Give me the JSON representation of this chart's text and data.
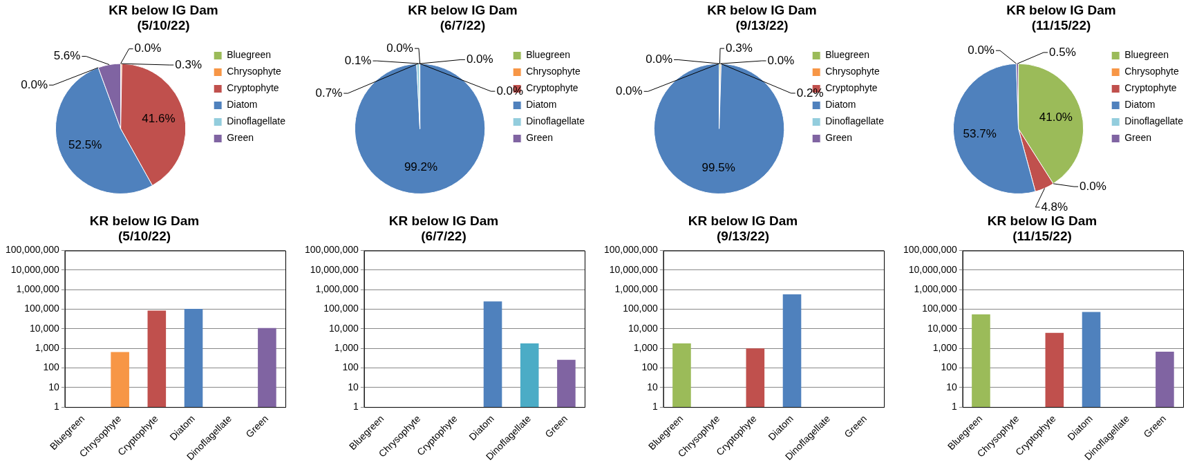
{
  "chart_data": [
    {
      "type": "pie",
      "title": "KR below IG Dam",
      "subtitle": "(5/10/22)",
      "categories": [
        "Bluegreen",
        "Chrysophyte",
        "Cryptophyte",
        "Diatom",
        "Dinoflagellate",
        "Green"
      ],
      "values": [
        0.0,
        0.3,
        41.6,
        52.5,
        0.0,
        5.6
      ],
      "value_labels": [
        "0.0%",
        "0.3%",
        "41.6%",
        "52.5%",
        "0.0%",
        "5.6%"
      ],
      "colors": [
        "#9bbb59",
        "#f79646",
        "#c0504d",
        "#4f81bd",
        "#93cddd",
        "#8064a2"
      ],
      "legend": "right"
    },
    {
      "type": "pie",
      "title": "KR below IG Dam",
      "subtitle": "(6/7/22)",
      "categories": [
        "Bluegreen",
        "Chrysophyte",
        "Cryptophyte",
        "Diatom",
        "Dinoflagellate",
        "Green"
      ],
      "values": [
        0.0,
        0.0,
        0.0,
        99.2,
        0.7,
        0.1
      ],
      "value_labels": [
        "0.0%",
        "0.0%",
        "0.0%",
        "99.2%",
        "0.7%",
        "0.1%"
      ],
      "colors": [
        "#9bbb59",
        "#f79646",
        "#c0504d",
        "#4f81bd",
        "#93cddd",
        "#8064a2"
      ],
      "legend": "right"
    },
    {
      "type": "pie",
      "title": "KR below IG Dam",
      "subtitle": "(9/13/22)",
      "categories": [
        "Bluegreen",
        "Chrysophyte",
        "Cryptophyte",
        "Diatom",
        "Dinoflagellate",
        "Green"
      ],
      "values": [
        0.3,
        0.0,
        0.2,
        99.5,
        0.0,
        0.0
      ],
      "value_labels": [
        "0.3%",
        "0.0%",
        "0.2%",
        "99.5%",
        "0.0%",
        "0.0%"
      ],
      "colors": [
        "#9bbb59",
        "#f79646",
        "#c0504d",
        "#4f81bd",
        "#93cddd",
        "#8064a2"
      ],
      "legend": "right"
    },
    {
      "type": "pie",
      "title": "KR below IG Dam",
      "subtitle": "(11/15/22)",
      "categories": [
        "Bluegreen",
        "Chrysophyte",
        "Cryptophyte",
        "Diatom",
        "Dinoflagellate",
        "Green"
      ],
      "values": [
        41.0,
        0.0,
        4.8,
        53.7,
        0.0,
        0.5
      ],
      "value_labels": [
        "41.0%",
        "0.0%",
        "4.8%",
        "53.7%",
        "0.0%",
        "0.5%"
      ],
      "colors": [
        "#9bbb59",
        "#f79646",
        "#c0504d",
        "#4f81bd",
        "#93cddd",
        "#8064a2"
      ],
      "legend": "right"
    },
    {
      "type": "bar",
      "title": "KR below IG Dam",
      "subtitle": "(5/10/22)",
      "categories": [
        "Bluegreen",
        "Chrysophyte",
        "Cryptophyte",
        "Diatom",
        "Dinoflagellate",
        "Green"
      ],
      "values": [
        null,
        650,
        85000,
        105000,
        null,
        11000
      ],
      "colors": [
        "#9bbb59",
        "#f79646",
        "#c0504d",
        "#4f81bd",
        "#4bacc6",
        "#8064a2"
      ],
      "log": true,
      "ylim": [
        1,
        100000000
      ],
      "yticks": [
        1,
        10,
        100,
        {
          "value": 1000,
          "label": "1,000"
        },
        {
          "value": 10000,
          "label": "10,000"
        },
        {
          "value": 100000,
          "label": "100,000"
        },
        {
          "value": 1000000,
          "label": "1,000,000"
        },
        {
          "value": 10000000,
          "label": "10,000,000"
        },
        {
          "value": 100000000,
          "label": "100,000,000"
        }
      ],
      "grid": "y"
    },
    {
      "type": "bar",
      "title": "KR below IG Dam",
      "subtitle": "(6/7/22)",
      "categories": [
        "Bluegreen",
        "Chrysophyte",
        "Cryptophyte",
        "Diatom",
        "Dinoflagellate",
        "Green"
      ],
      "values": [
        null,
        null,
        null,
        250000,
        1800,
        260
      ],
      "colors": [
        "#9bbb59",
        "#f79646",
        "#c0504d",
        "#4f81bd",
        "#4bacc6",
        "#8064a2"
      ],
      "log": true,
      "ylim": [
        1,
        100000000
      ],
      "yticks": [
        1,
        10,
        100,
        {
          "value": 1000,
          "label": "1,000"
        },
        {
          "value": 10000,
          "label": "10,000"
        },
        {
          "value": 100000,
          "label": "100,000"
        },
        {
          "value": 1000000,
          "label": "1,000,000"
        },
        {
          "value": 10000000,
          "label": "10,000,000"
        },
        {
          "value": 100000000,
          "label": "100,000,000"
        }
      ],
      "grid": "y"
    },
    {
      "type": "bar",
      "title": "KR below IG Dam",
      "subtitle": "(9/13/22)",
      "categories": [
        "Bluegreen",
        "Chrysophyte",
        "Cryptophyte",
        "Diatom",
        "Dinoflagellate",
        "Green"
      ],
      "values": [
        1800,
        null,
        1000,
        580000,
        null,
        null
      ],
      "colors": [
        "#9bbb59",
        "#f79646",
        "#c0504d",
        "#4f81bd",
        "#4bacc6",
        "#8064a2"
      ],
      "log": true,
      "ylim": [
        1,
        100000000
      ],
      "yticks": [
        1,
        10,
        100,
        {
          "value": 1000,
          "label": "1,000"
        },
        {
          "value": 10000,
          "label": "10,000"
        },
        {
          "value": 100000,
          "label": "100,000"
        },
        {
          "value": 1000000,
          "label": "1,000,000"
        },
        {
          "value": 10000000,
          "label": "10,000,000"
        },
        {
          "value": 100000000,
          "label": "100,000,000"
        }
      ],
      "grid": "y"
    },
    {
      "type": "bar",
      "title": "KR below IG Dam",
      "subtitle": "(11/15/22)",
      "categories": [
        "Bluegreen",
        "Chrysophyte",
        "Cryptophyte",
        "Diatom",
        "Dinoflagellate",
        "Green"
      ],
      "values": [
        55000,
        null,
        6200,
        72000,
        null,
        680
      ],
      "colors": [
        "#9bbb59",
        "#f79646",
        "#c0504d",
        "#4f81bd",
        "#4bacc6",
        "#8064a2"
      ],
      "log": true,
      "ylim": [
        1,
        100000000
      ],
      "yticks": [
        1,
        10,
        100,
        {
          "value": 1000,
          "label": "1,000"
        },
        {
          "value": 10000,
          "label": "10,000"
        },
        {
          "value": 100000,
          "label": "100,000"
        },
        {
          "value": 1000000,
          "label": "1,000,000"
        },
        {
          "value": 10000000,
          "label": "10,000,000"
        },
        {
          "value": 100000000,
          "label": "100,000,000"
        }
      ],
      "grid": "y"
    }
  ]
}
